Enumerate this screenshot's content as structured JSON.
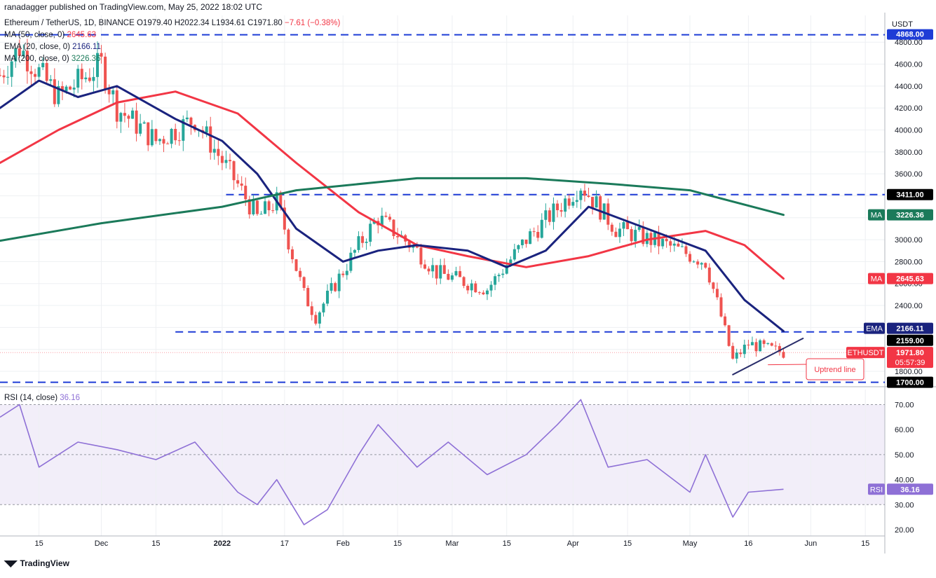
{
  "header": {
    "publisher": "ranadagger published on TradingView.com, May 25, 2022 18:02 UTC"
  },
  "symbol_line": {
    "title": "Ethereum / TetherUS, 1D, BINANCE",
    "o": "O1979.40",
    "h": "H2022.34",
    "l": "L1934.61",
    "c": "C1971.80",
    "chg": "−7.61 (−0.38%)"
  },
  "indicators": {
    "ma50": {
      "label": "MA (50, close, 0)",
      "value": "2645.63",
      "color": "#f23645"
    },
    "ema20": {
      "label": "EMA (20, close, 0)",
      "value": "2166.11",
      "color": "#1a237e"
    },
    "ma200": {
      "label": "MA (200, close, 0)",
      "value": "3226.36",
      "color": "#1b7a5a"
    },
    "rsi": {
      "label": "RSI (14, close)",
      "value": "36.16",
      "color": "#8e70d6"
    }
  },
  "axis": {
    "currency": "USDT",
    "price_ticks": [
      "4800.00",
      "4600.00",
      "4400.00",
      "4200.00",
      "4000.00",
      "3800.00",
      "3600.00",
      "3000.00",
      "2800.00",
      "2600.00",
      "2400.00",
      "1800.00"
    ],
    "rsi_ticks": [
      "70.00",
      "60.00",
      "50.00",
      "40.00",
      "30.00",
      "20.00"
    ],
    "x_ticks": [
      "15",
      "Dec",
      "15",
      "2022",
      "17",
      "Feb",
      "15",
      "Mar",
      "15",
      "Apr",
      "15",
      "May",
      "16",
      "Jun",
      "15"
    ]
  },
  "price_boxes": {
    "top_level": "4868.00",
    "resistance": "3411.00",
    "ma_tag": "MA",
    "ma200_value": "3226.36",
    "ma50_value": "2645.63",
    "ema_tag": "EMA",
    "ema_value": "2166.11",
    "level_2159": "2159.00",
    "symbol": "ETHUSDT",
    "last_price": "1971.80",
    "countdown": "05:57:39",
    "support": "1700.00",
    "rsi_tag": "RSI",
    "rsi_value": "36.16"
  },
  "annotations": {
    "uptrend_label": "Uptrend line"
  },
  "footer": {
    "brand": "TradingView"
  },
  "chart_data": {
    "type": "line",
    "title": "Ethereum / TetherUS, 1D, BINANCE",
    "xlabel": "",
    "ylabel": "USDT",
    "ylim": [
      1650,
      4900
    ],
    "x_range": [
      "2021-11-05",
      "2022-06-20"
    ],
    "grid": true,
    "horizontal_levels": [
      4868,
      3411,
      2159,
      1700
    ],
    "series": [
      {
        "name": "MA (50, close, 0)",
        "color": "#f23645",
        "x": [
          "2021-11-05",
          "2021-11-20",
          "2021-12-05",
          "2021-12-20",
          "2022-01-05",
          "2022-01-20",
          "2022-02-05",
          "2022-02-20",
          "2022-03-05",
          "2022-03-20",
          "2022-04-05",
          "2022-04-20",
          "2022-05-05",
          "2022-05-15",
          "2022-05-25"
        ],
        "values": [
          3700,
          4000,
          4250,
          4350,
          4150,
          3700,
          3250,
          2950,
          2850,
          2750,
          2850,
          3000,
          3080,
          2950,
          2645.63
        ]
      },
      {
        "name": "EMA (20, close, 0)",
        "color": "#1a237e",
        "x": [
          "2021-11-05",
          "2021-11-15",
          "2021-11-25",
          "2021-12-05",
          "2021-12-20",
          "2022-01-01",
          "2022-01-10",
          "2022-01-20",
          "2022-02-01",
          "2022-02-10",
          "2022-02-20",
          "2022-03-05",
          "2022-03-15",
          "2022-03-25",
          "2022-04-05",
          "2022-04-20",
          "2022-05-05",
          "2022-05-15",
          "2022-05-25"
        ],
        "values": [
          4200,
          4450,
          4300,
          4400,
          4100,
          3900,
          3600,
          3100,
          2800,
          2900,
          2950,
          2900,
          2750,
          2900,
          3300,
          3100,
          2900,
          2450,
          2166.11
        ]
      },
      {
        "name": "MA (200, close, 0)",
        "color": "#1b7a5a",
        "x": [
          "2021-11-05",
          "2021-12-01",
          "2022-01-01",
          "2022-01-20",
          "2022-02-20",
          "2022-03-20",
          "2022-04-10",
          "2022-05-01",
          "2022-05-25"
        ],
        "values": [
          2990,
          3150,
          3300,
          3450,
          3560,
          3560,
          3510,
          3450,
          3226.36
        ]
      },
      {
        "name": "Uptrend line",
        "color": "#2a2e6b",
        "x": [
          "2022-05-12",
          "2022-05-30"
        ],
        "values": [
          1770,
          2100
        ]
      }
    ],
    "candles_approx_close": {
      "x": [
        "2021-11-05",
        "2021-11-10",
        "2021-11-20",
        "2021-12-01",
        "2021-12-05",
        "2021-12-15",
        "2021-12-25",
        "2022-01-05",
        "2022-01-10",
        "2022-01-15",
        "2022-01-22",
        "2022-01-25",
        "2022-02-05",
        "2022-02-10",
        "2022-02-20",
        "2022-02-25",
        "2022-03-10",
        "2022-03-20",
        "2022-04-03",
        "2022-04-12",
        "2022-04-25",
        "2022-05-05",
        "2022-05-09",
        "2022-05-12",
        "2022-05-16",
        "2022-05-25"
      ],
      "values": [
        4500,
        4750,
        4300,
        4600,
        4200,
        3900,
        4100,
        3500,
        3200,
        3350,
        2500,
        2300,
        2950,
        3200,
        2900,
        2700,
        2550,
        3000,
        3500,
        3100,
        2950,
        2800,
        2300,
        1900,
        2050,
        1971.8
      ]
    },
    "rsi": {
      "name": "RSI (14, close)",
      "ylim": [
        18,
        75
      ],
      "levels": [
        70,
        50,
        30
      ],
      "x": [
        "2021-11-05",
        "2021-11-10",
        "2021-11-15",
        "2021-11-25",
        "2021-12-05",
        "2021-12-15",
        "2021-12-25",
        "2022-01-05",
        "2022-01-10",
        "2022-01-15",
        "2022-01-22",
        "2022-01-28",
        "2022-02-05",
        "2022-02-10",
        "2022-02-20",
        "2022-02-28",
        "2022-03-10",
        "2022-03-20",
        "2022-03-28",
        "2022-04-03",
        "2022-04-10",
        "2022-04-20",
        "2022-05-01",
        "2022-05-05",
        "2022-05-12",
        "2022-05-16",
        "2022-05-25"
      ],
      "values": [
        65,
        70,
        45,
        55,
        52,
        48,
        55,
        35,
        30,
        40,
        22,
        28,
        50,
        62,
        45,
        55,
        42,
        50,
        62,
        72,
        45,
        48,
        35,
        50,
        25,
        35,
        36.16
      ]
    }
  }
}
